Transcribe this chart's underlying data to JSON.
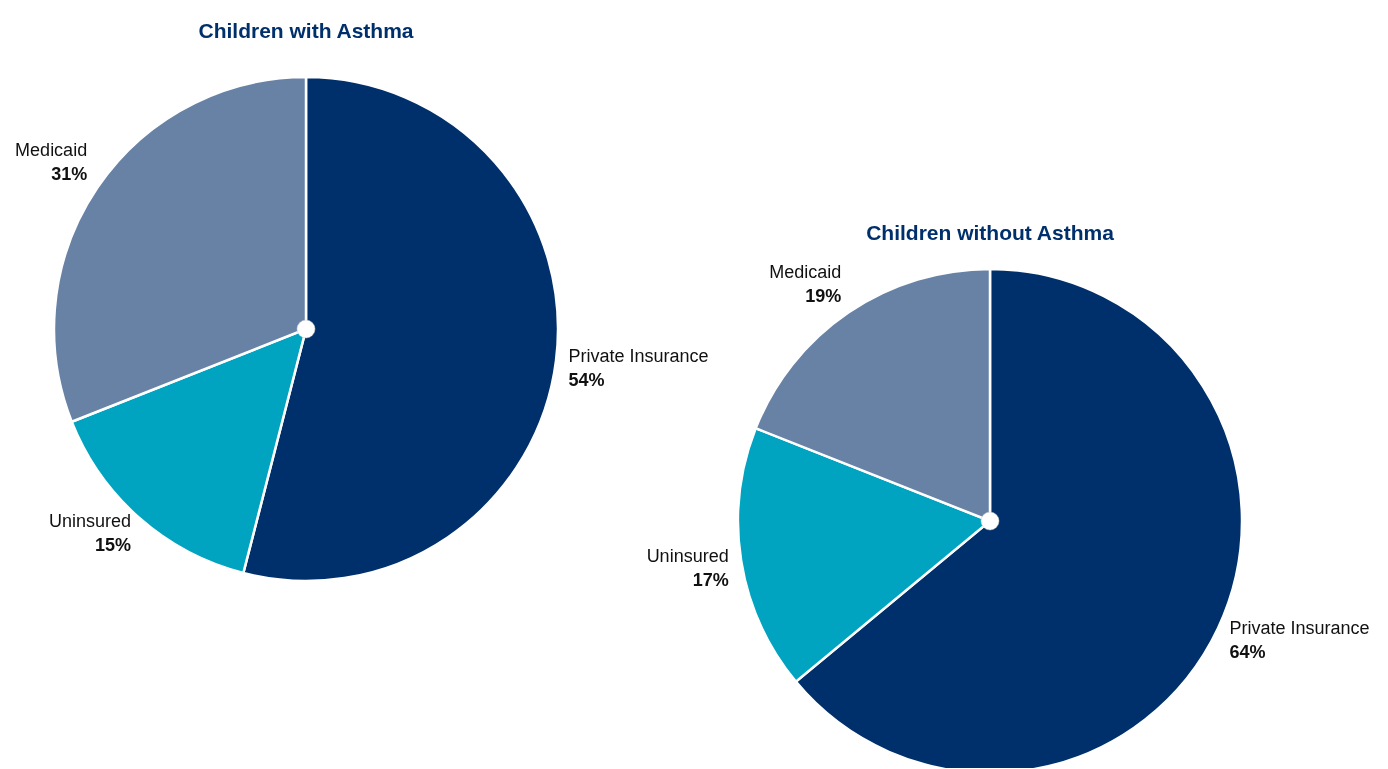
{
  "chart_data": [
    {
      "type": "pie",
      "title": "Children with Asthma",
      "categories": [
        "Private Insurance",
        "Uninsured",
        "Medicaid"
      ],
      "values": [
        54,
        15,
        31
      ],
      "value_labels": [
        "54%",
        "15%",
        "31%"
      ],
      "colors": [
        "#00306b",
        "#00a4c0",
        "#6882a6"
      ]
    },
    {
      "type": "pie",
      "title": "Children without Asthma",
      "categories": [
        "Private Insurance",
        "Uninsured",
        "Medicaid"
      ],
      "values": [
        64,
        17,
        19
      ],
      "value_labels": [
        "64%",
        "17%",
        "19%"
      ],
      "colors": [
        "#00306b",
        "#00a4c0",
        "#6882a6"
      ]
    }
  ]
}
